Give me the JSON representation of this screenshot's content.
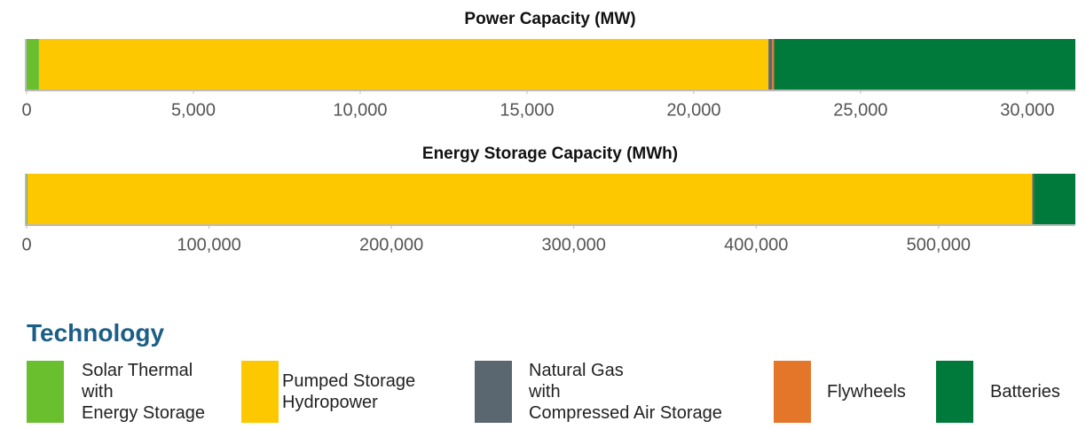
{
  "legend": {
    "title": "Technology",
    "series": [
      {
        "name": "Solar Thermal\nwith\nEnergy Storage",
        "color": "#6abf2f"
      },
      {
        "name": "Pumped Storage\nHydropower",
        "color": "#fdc800"
      },
      {
        "name": "Natural Gas\nwith\nCompressed Air Storage",
        "color": "#5b6770"
      },
      {
        "name": "Flywheels",
        "color": "#e4762a"
      },
      {
        "name": "Batteries",
        "color": "#007a3a"
      }
    ]
  },
  "chart_data": [
    {
      "type": "bar",
      "title": "Power Capacity (MW)",
      "values": [
        370,
        21870,
        110,
        60,
        9030
      ],
      "xlim": [
        0,
        31440
      ],
      "xticks": [
        0,
        {
          "value": 5000,
          "label": "5,000"
        },
        {
          "value": 10000,
          "label": "10,000"
        },
        {
          "value": 15000,
          "label": "15,000"
        },
        {
          "value": 20000,
          "label": "20,000"
        },
        {
          "value": 25000,
          "label": "25,000"
        },
        {
          "value": 30000,
          "label": "30,000"
        }
      ]
    },
    {
      "type": "bar",
      "title": "Energy Storage Capacity (MWh)",
      "values": [
        500,
        550880,
        800,
        20,
        22800
      ],
      "xlim": [
        0,
        575000
      ],
      "xticks": [
        0,
        {
          "value": 100000,
          "label": "100,000"
        },
        {
          "value": 200000,
          "label": "200,000"
        },
        {
          "value": 300000,
          "label": "300,000"
        },
        {
          "value": 400000,
          "label": "400,000"
        },
        {
          "value": 500000,
          "label": "500,000"
        }
      ]
    }
  ]
}
